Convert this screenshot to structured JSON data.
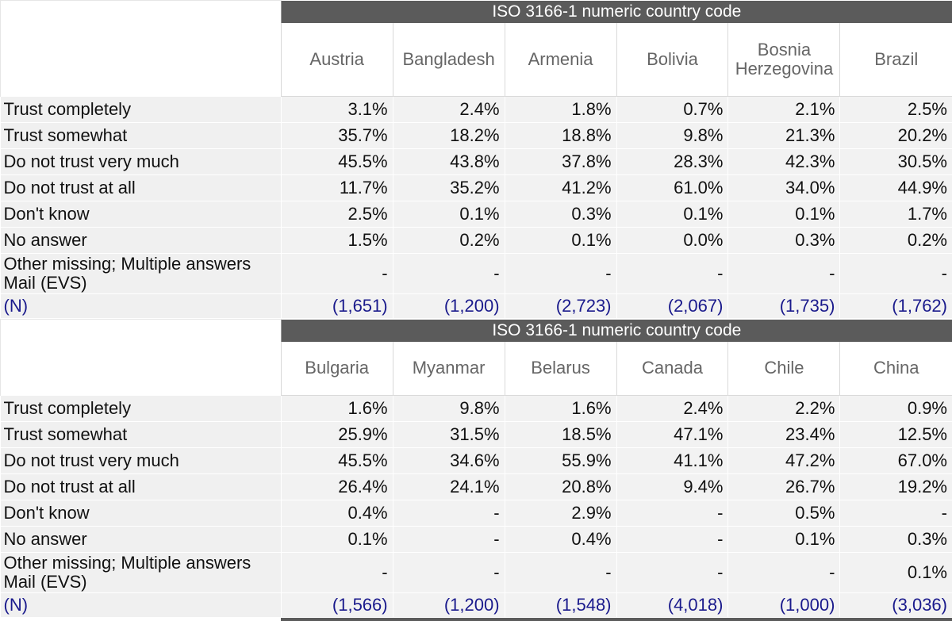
{
  "header_title": "ISO 3166-1 numeric country code",
  "row_labels": [
    "Trust completely",
    "Trust somewhat",
    "Do not trust very much",
    "Do not trust at all",
    "Don't know",
    "No answer",
    "Other missing; Multiple answers Mail (EVS)",
    "(N)"
  ],
  "tables": [
    {
      "countries": [
        "Austria",
        "Bangladesh",
        "Armenia",
        "Bolivia",
        "Bosnia Herzegovina",
        "Brazil"
      ],
      "rows": [
        [
          "3.1%",
          "2.4%",
          "1.8%",
          "0.7%",
          "2.1%",
          "2.5%"
        ],
        [
          "35.7%",
          "18.2%",
          "18.8%",
          "9.8%",
          "21.3%",
          "20.2%"
        ],
        [
          "45.5%",
          "43.8%",
          "37.8%",
          "28.3%",
          "42.3%",
          "30.5%"
        ],
        [
          "11.7%",
          "35.2%",
          "41.2%",
          "61.0%",
          "34.0%",
          "44.9%"
        ],
        [
          "2.5%",
          "0.1%",
          "0.3%",
          "0.1%",
          "0.1%",
          "1.7%"
        ],
        [
          "1.5%",
          "0.2%",
          "0.1%",
          "0.0%",
          "0.3%",
          "0.2%"
        ],
        [
          "-",
          "-",
          "-",
          "-",
          "-",
          "-"
        ],
        [
          "(1,651)",
          "(1,200)",
          "(2,723)",
          "(2,067)",
          "(1,735)",
          "(1,762)"
        ]
      ]
    },
    {
      "countries": [
        "Bulgaria",
        "Myanmar",
        "Belarus",
        "Canada",
        "Chile",
        "China"
      ],
      "rows": [
        [
          "1.6%",
          "9.8%",
          "1.6%",
          "2.4%",
          "2.2%",
          "0.9%"
        ],
        [
          "25.9%",
          "31.5%",
          "18.5%",
          "47.1%",
          "23.4%",
          "12.5%"
        ],
        [
          "45.5%",
          "34.6%",
          "55.9%",
          "41.1%",
          "47.2%",
          "67.0%"
        ],
        [
          "26.4%",
          "24.1%",
          "20.8%",
          "9.4%",
          "26.7%",
          "19.2%"
        ],
        [
          "0.4%",
          "-",
          "2.9%",
          "-",
          "0.5%",
          "-"
        ],
        [
          "0.1%",
          "-",
          "0.4%",
          "-",
          "0.1%",
          "0.3%"
        ],
        [
          "-",
          "-",
          "-",
          "-",
          "-",
          "0.1%"
        ],
        [
          "(1,566)",
          "(1,200)",
          "(1,548)",
          "(4,018)",
          "(1,000)",
          "(3,036)"
        ]
      ]
    }
  ],
  "colors": {
    "header_bg": "#5b5b5b",
    "cell_bg": "#f2f2f2",
    "n_text": "#1a1a8c"
  }
}
